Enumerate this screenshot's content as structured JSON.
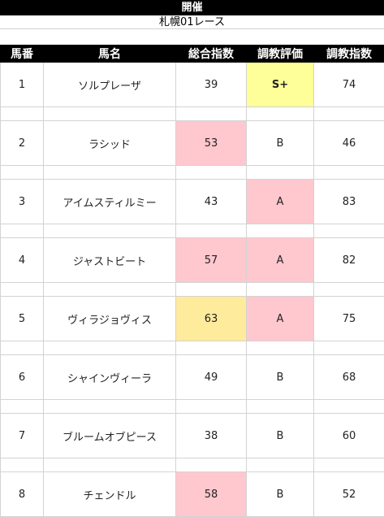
{
  "header": {
    "title": "開催",
    "race": "札幌01レース"
  },
  "columns": [
    "馬番",
    "馬名",
    "総合指数",
    "調教評価",
    "調教指数"
  ],
  "rows": [
    {
      "no": "1",
      "name": "ソルプレーザ",
      "index": "39",
      "eval": "S+",
      "training": "74",
      "index_hl": "",
      "eval_hl": "bright"
    },
    {
      "no": "2",
      "name": "ラシッド",
      "index": "53",
      "eval": "B",
      "training": "46",
      "index_hl": "pink",
      "eval_hl": ""
    },
    {
      "no": "3",
      "name": "アイムスティルミー",
      "index": "43",
      "eval": "A",
      "training": "83",
      "index_hl": "",
      "eval_hl": "pink"
    },
    {
      "no": "4",
      "name": "ジャストビート",
      "index": "57",
      "eval": "A",
      "training": "82",
      "index_hl": "pink",
      "eval_hl": "pink"
    },
    {
      "no": "5",
      "name": "ヴィラジョヴィス",
      "index": "63",
      "eval": "A",
      "training": "75",
      "index_hl": "yellow",
      "eval_hl": "pink"
    },
    {
      "no": "6",
      "name": "シャインヴィーラ",
      "index": "49",
      "eval": "B",
      "training": "68",
      "index_hl": "",
      "eval_hl": ""
    },
    {
      "no": "7",
      "name": "ブルームオブピース",
      "index": "38",
      "eval": "B",
      "training": "60",
      "index_hl": "",
      "eval_hl": ""
    },
    {
      "no": "8",
      "name": "チェンドル",
      "index": "58",
      "eval": "B",
      "training": "52",
      "index_hl": "pink",
      "eval_hl": ""
    }
  ],
  "colors": {
    "pink_fill": "#ffc7ce",
    "pink_text": "#9c0006",
    "yellow_fill": "#ffeb9c",
    "yellow_text": "#9c5700",
    "bright_fill": "#ffff99",
    "bright_text": "#ff0000"
  }
}
